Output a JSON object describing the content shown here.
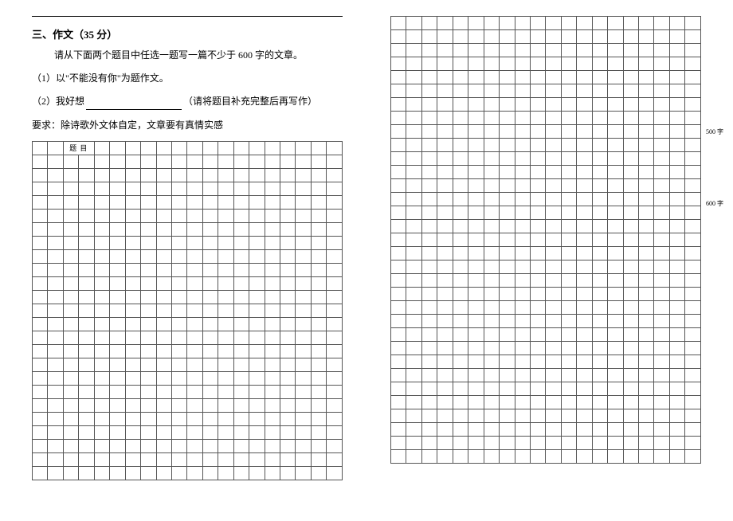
{
  "left": {
    "section_title_prefix": "三、作文（",
    "section_title_score": "35 分",
    "section_title_suffix": "）",
    "instruction": "请从下面两个题目中任选一题写一篇不少于 600 字的文章。",
    "prompt1": "（1）以\"不能没有你\"为题作文。",
    "prompt2_prefix": "（2）我好想",
    "prompt2_suffix": "（请将题目补充完整后再写作）",
    "requirement": "要求：除诗歌外文体自定，文章要有真情实感",
    "grid": {
      "cols": 20,
      "rows": 25,
      "title_label_col": 2,
      "title_label": "题 目"
    }
  },
  "right": {
    "grid": {
      "cols": 20,
      "rows": 33,
      "markers": [
        {
          "row": 8,
          "text": "500 字"
        },
        {
          "row": 13,
          "text": "600 字"
        }
      ]
    }
  },
  "style": {
    "border_color": "#555555",
    "text_color": "#000000",
    "bg_color": "#ffffff"
  }
}
